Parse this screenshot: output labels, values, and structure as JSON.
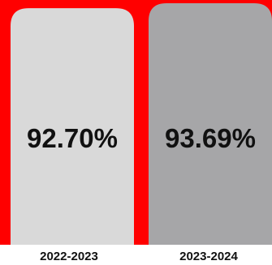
{
  "chart_data": {
    "type": "bar",
    "categories": [
      "2022-2023",
      "2023-2024"
    ],
    "values": [
      92.7,
      93.69
    ],
    "value_labels": [
      "92.70%",
      "93.69%"
    ],
    "title": "",
    "xlabel": "",
    "ylabel": "",
    "grid": false,
    "legend": "none"
  },
  "colors": {
    "background": "#ff0000",
    "bar_1": "#d9d9d9",
    "bar_2": "#a6a6a8",
    "label_text": "#111111",
    "value_text": "#111111"
  }
}
